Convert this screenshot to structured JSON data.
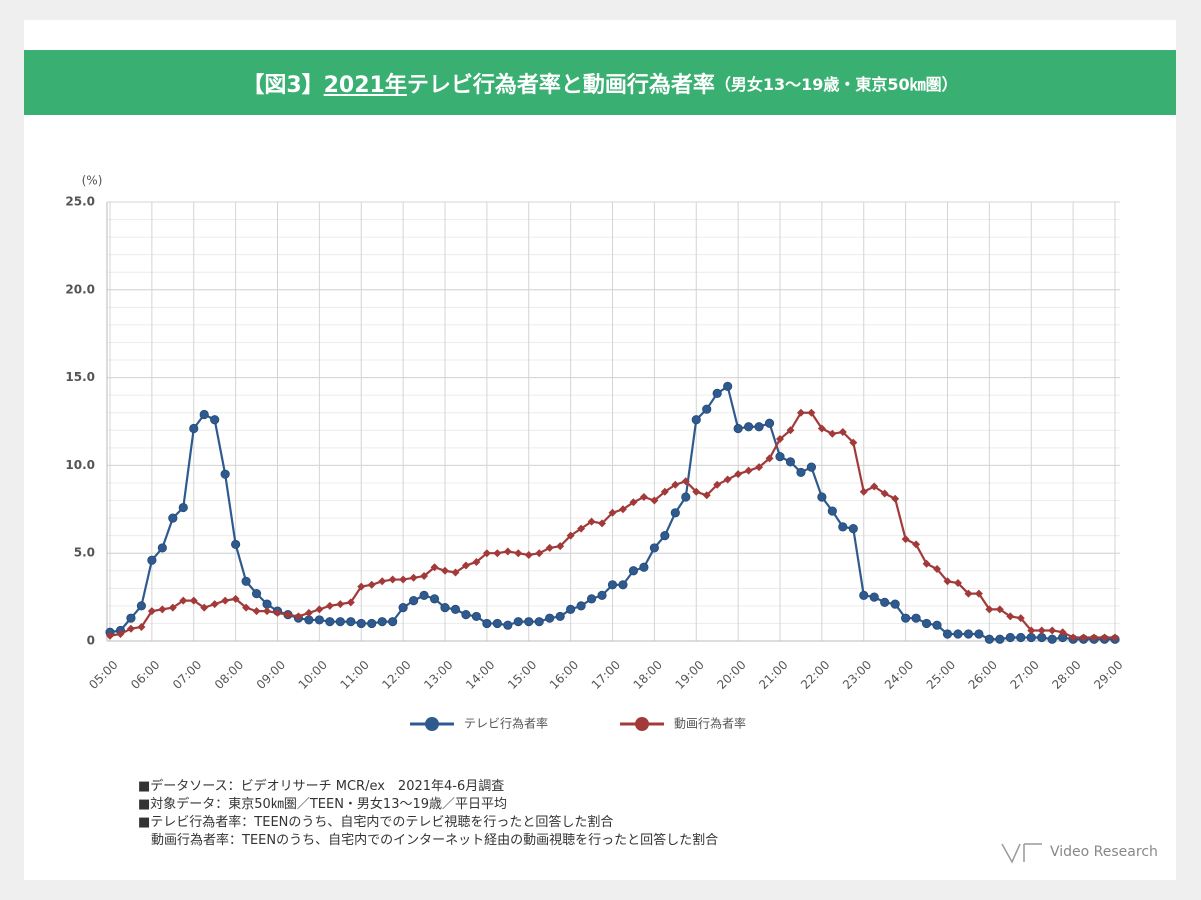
{
  "chart_data": {
    "type": "line",
    "title_parts": [
      "【図3】",
      "2021年",
      " テレビ行為者率と動画行為者率",
      "（男女13〜19歳・東京50㎞圏）"
    ],
    "y_unit": "(%)",
    "categories": [
      "05:00",
      null,
      null,
      null,
      "06:00",
      null,
      null,
      null,
      "07:00",
      null,
      null,
      null,
      "08:00",
      null,
      null,
      null,
      "09:00",
      null,
      null,
      null,
      "10:00",
      null,
      null,
      null,
      "11:00",
      null,
      null,
      null,
      "12:00",
      null,
      null,
      null,
      "13:00",
      null,
      null,
      null,
      "14:00",
      null,
      null,
      null,
      "15:00",
      null,
      null,
      null,
      "16:00",
      null,
      null,
      null,
      "17:00",
      null,
      null,
      null,
      "18:00",
      null,
      null,
      null,
      "19:00",
      null,
      null,
      null,
      "20:00",
      null,
      null,
      null,
      "21:00",
      null,
      null,
      null,
      "22:00",
      null,
      null,
      null,
      "23:00",
      null,
      null,
      null,
      "24:00",
      null,
      null,
      null,
      "25:00",
      null,
      null,
      null,
      "26:00",
      null,
      null,
      null,
      "27:00",
      null,
      null,
      null,
      "28:00",
      null,
      null,
      null,
      "29:00"
    ],
    "series": [
      {
        "name": "テレビ行為者率",
        "color": "#2f5a8f",
        "marker": "circle",
        "values": [
          0.5,
          0.6,
          1.3,
          2.0,
          4.6,
          5.3,
          7.0,
          7.6,
          12.1,
          12.9,
          12.6,
          9.5,
          5.5,
          3.4,
          2.7,
          2.1,
          1.7,
          1.5,
          1.3,
          1.2,
          1.2,
          1.1,
          1.1,
          1.1,
          1.0,
          1.0,
          1.1,
          1.1,
          1.9,
          2.3,
          2.6,
          2.4,
          1.9,
          1.8,
          1.5,
          1.4,
          1.0,
          1.0,
          0.9,
          1.1,
          1.1,
          1.1,
          1.3,
          1.4,
          1.8,
          2.0,
          2.4,
          2.6,
          3.2,
          3.2,
          4.0,
          4.2,
          5.3,
          6.0,
          7.3,
          8.2,
          12.6,
          13.2,
          14.1,
          14.5,
          12.1,
          12.2,
          12.2,
          12.4,
          10.5,
          10.2,
          9.6,
          9.9,
          8.2,
          7.4,
          6.5,
          6.4,
          2.6,
          2.5,
          2.2,
          2.1,
          1.3,
          1.3,
          1.0,
          0.9,
          0.4,
          0.4,
          0.4,
          0.4,
          0.1,
          0.1,
          0.2,
          0.2,
          0.2,
          0.2,
          0.1,
          0.2,
          0.1,
          0.1,
          0.1,
          0.1,
          0.1
        ]
      },
      {
        "name": "動画行為者率",
        "color": "#a33a3a",
        "marker": "diamond",
        "values": [
          0.3,
          0.4,
          0.7,
          0.8,
          1.7,
          1.8,
          1.9,
          2.3,
          2.3,
          1.9,
          2.1,
          2.3,
          2.4,
          1.9,
          1.7,
          1.7,
          1.6,
          1.5,
          1.4,
          1.6,
          1.8,
          2.0,
          2.1,
          2.2,
          3.1,
          3.2,
          3.4,
          3.5,
          3.5,
          3.6,
          3.7,
          4.2,
          4.0,
          3.9,
          4.3,
          4.5,
          5.0,
          5.0,
          5.1,
          5.0,
          4.9,
          5.0,
          5.3,
          5.4,
          6.0,
          6.4,
          6.8,
          6.7,
          7.3,
          7.5,
          7.9,
          8.2,
          8.0,
          8.5,
          8.9,
          9.1,
          8.5,
          8.3,
          8.9,
          9.2,
          9.5,
          9.7,
          9.9,
          10.4,
          11.5,
          12.0,
          13.0,
          13.0,
          12.1,
          11.8,
          11.9,
          11.3,
          8.5,
          8.8,
          8.4,
          8.1,
          5.8,
          5.5,
          4.4,
          4.1,
          3.4,
          3.3,
          2.7,
          2.7,
          1.8,
          1.8,
          1.4,
          1.3,
          0.6,
          0.6,
          0.6,
          0.5,
          0.2,
          0.2,
          0.2,
          0.2,
          0.2
        ]
      }
    ],
    "ylim": [
      0,
      25
    ],
    "yticks": [
      0,
      {
        "value": 5,
        "label": "5.0"
      },
      {
        "value": 10,
        "label": "10.0"
      },
      {
        "value": 15,
        "label": "15.0"
      },
      {
        "value": 20,
        "label": "20.0"
      },
      {
        "value": 25,
        "label": "25.0"
      }
    ],
    "grid": true,
    "legend": "bottom",
    "notes": [
      "■データソース：ビデオリサーチ MCR/ex　2021年4-6月調査",
      "■対象データ：東京50㎞圏／TEEN・男女13〜19歳／平日平均",
      "■テレビ行為者率：TEENのうち、自宅内でのテレビ視聴を行ったと回答した割合",
      "　動画行為者率：TEENのうち、自宅内でのインターネット経由の動画視聴を行ったと回答した割合"
    ],
    "logo": "Video Research"
  }
}
